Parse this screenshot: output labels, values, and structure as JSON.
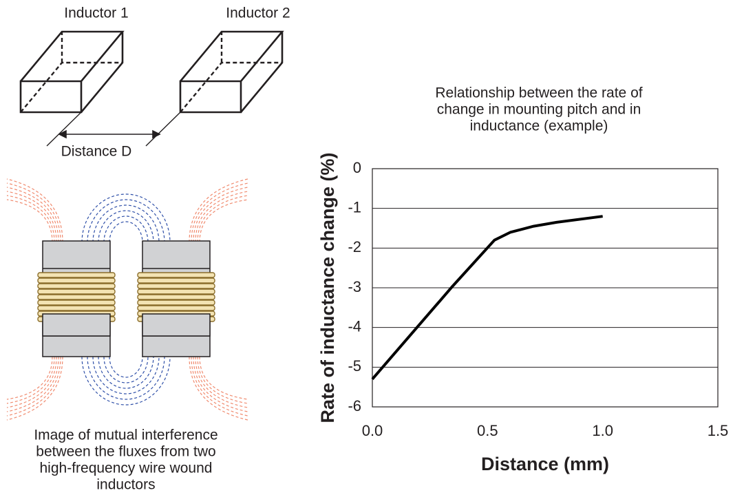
{
  "diagram": {
    "inductor_1": "Inductor 1",
    "inductor_2": "Inductor 2",
    "distance": "Distance D",
    "caption": [
      "Image of mutual interference",
      "between the fluxes from two",
      "high-frequency wire wound",
      "inductors"
    ]
  },
  "chart_data": {
    "type": "line",
    "title": [
      "Relationship between the rate of",
      "change in mounting pitch and in",
      "inductance (example)"
    ],
    "x_label": "Distance (mm)",
    "y_label": "Rate of inductance change (%)",
    "x": [
      0.0,
      0.35,
      0.53,
      0.6,
      0.7,
      0.8,
      1.0
    ],
    "values": [
      -5.3,
      -2.95,
      -1.8,
      -1.6,
      -1.45,
      -1.35,
      -1.2
    ],
    "color": "#000000",
    "xlim": [
      0,
      1.5
    ],
    "xticks": [
      {
        "value": 0,
        "label": "0.0"
      },
      0.5,
      {
        "value": 1,
        "label": "1.0"
      },
      1.5
    ],
    "ylim": [
      -6,
      0
    ],
    "yticks": [
      0,
      -1,
      -2,
      -3,
      -4,
      -5,
      -6
    ],
    "grid": true
  }
}
